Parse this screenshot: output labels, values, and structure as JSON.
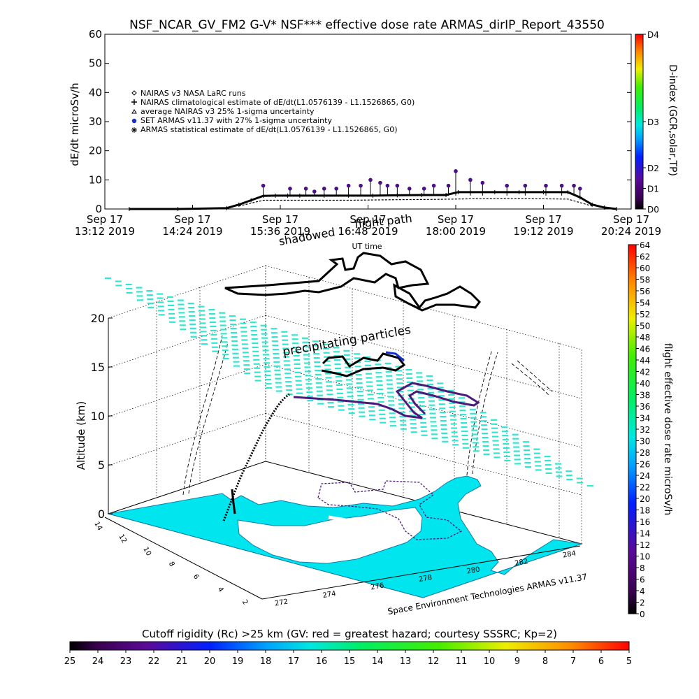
{
  "title": "NSF_NCAR_GV_FM2 G-V* NSF*** effective dose rate ARMAS_dirIP_Report_43550",
  "credit": "Space Environment Technologies ARMAS v11.37",
  "labels": {
    "shadowed": "shadowed",
    "flight_path": "flight path",
    "precipitating": "precipitating particles",
    "ut_time": "UT time"
  },
  "legend": [
    {
      "marker": "diamond",
      "text": "NAIRAS v3 NASA LaRC runs"
    },
    {
      "marker": "plus",
      "text": "NAIRAS climatological estimate of dE/dt(L1.0576139 - L1.1526865, G0)"
    },
    {
      "marker": "triangle",
      "text": "average NAIRAS v3 25% 1-sigma uncertainty"
    },
    {
      "marker": "circle",
      "text": "SET ARMAS v11.37 with 27% 1-sigma uncertainty"
    },
    {
      "marker": "asterisk",
      "text": "ARMAS statistical estimate of dE/dt(L1.0576139 - L1.1526865, G0)"
    }
  ],
  "dindex_bar": {
    "title": "D-index (GCR,solar,TP)",
    "ticks": [
      {
        "label": "D4",
        "frac": 1.0
      },
      {
        "label": "D3",
        "frac": 0.5
      },
      {
        "label": "D2",
        "frac": 0.236
      },
      {
        "label": "D1",
        "frac": 0.118
      },
      {
        "label": "D0",
        "frac": 0.0
      }
    ]
  },
  "dose_bar": {
    "title": "flight effective dose rate microSv/h",
    "min": 0,
    "max": 64,
    "step": 2
  },
  "rigidity_bar": {
    "title": "Cutoff rigidity (Rc) >25 km (GV: red = greatest hazard; courtesy SSSRC; Kp=2)",
    "ticks": [
      "25",
      "24",
      "23",
      "22",
      "21",
      "20",
      "19",
      "18",
      "17",
      "16",
      "15",
      "14",
      "13",
      "12",
      "11",
      "10",
      "9",
      "8",
      "7",
      "6",
      "5"
    ]
  },
  "colors": {
    "armas": "#4b0f8c",
    "land": "#00e5ee",
    "precip": "#30e6cf",
    "track": "#000000"
  },
  "chart_data": [
    {
      "type": "scatter",
      "ylabel": "dE/dt microSv/h",
      "xlabel": "UT time",
      "ylim": [
        0,
        60
      ],
      "yticks": [
        0,
        10,
        20,
        30,
        40,
        50,
        60
      ],
      "xlim": [
        0,
        432
      ],
      "xticks": [
        {
          "t": 0,
          "l1": "Sep 17",
          "l2": "13:12 2019"
        },
        {
          "t": 72,
          "l1": "Sep 17",
          "l2": "14:24 2019"
        },
        {
          "t": 144,
          "l1": "Sep 17",
          "l2": "15:36 2019"
        },
        {
          "t": 216,
          "l1": "Sep 17",
          "l2": "16:48 2019"
        },
        {
          "t": 288,
          "l1": "Sep 17",
          "l2": "18:00 2019"
        },
        {
          "t": 360,
          "l1": "Sep 17",
          "l2": "19:12 2019"
        },
        {
          "t": 432,
          "l1": "Sep 17",
          "l2": "20:24 2019"
        }
      ],
      "series": [
        {
          "name": "NAIRAS climatological estimate of dE/dt(L1.0576139 - L1.1526865, G0)",
          "marker": "plus",
          "x": [
            20,
            60,
            100,
            110,
            120,
            130,
            140,
            150,
            160,
            180,
            200,
            220,
            240,
            260,
            280,
            290,
            300,
            320,
            340,
            360,
            380,
            390,
            400,
            410,
            420
          ],
          "y": [
            0,
            0,
            0.3,
            1.5,
            3,
            4.5,
            4.6,
            4.6,
            4.6,
            4.6,
            4.6,
            4.6,
            4.7,
            4.8,
            4.8,
            5.8,
            5.8,
            5.8,
            5.8,
            5.8,
            5.8,
            4,
            1.5,
            0.5,
            0
          ]
        },
        {
          "name": "SET ARMAS v11.37 with 27% 1-sigma uncertainty",
          "marker": "circle",
          "x": [
            130,
            152,
            165,
            172,
            180,
            190,
            200,
            210,
            218,
            226,
            232,
            240,
            250,
            262,
            270,
            282,
            288,
            300,
            310,
            330,
            345,
            362,
            375,
            385,
            390
          ],
          "y": [
            8,
            7,
            7,
            6,
            7,
            7,
            8,
            8,
            10,
            9,
            8,
            8,
            7,
            7,
            8,
            8,
            13,
            10,
            9,
            8,
            8,
            8,
            8,
            8,
            7
          ]
        },
        {
          "name": "NAIRAS v3 NASA LaRC runs",
          "marker": "diamond",
          "x": [
            110,
            130,
            160,
            200,
            240,
            270,
            300,
            340,
            380,
            400
          ],
          "y": [
            1,
            3,
            3,
            3,
            3.2,
            3.3,
            3.5,
            3.6,
            3.4,
            1
          ]
        }
      ]
    },
    {
      "type": "line",
      "title": "",
      "ylabel": "Altitude (km)",
      "xlabel": "",
      "zlim": [
        0,
        20
      ],
      "zticks": [
        0,
        5,
        10,
        15,
        20
      ],
      "lonticks": [
        272,
        274,
        276,
        278,
        280,
        282,
        284
      ],
      "latticks": [
        2,
        4,
        6,
        8,
        10,
        12,
        14
      ],
      "series": [
        {
          "name": "flight path",
          "lon": [
            272.0,
            272.4,
            272.8,
            273.1,
            273.0,
            272.9,
            272.8
          ],
          "alt": [
            0.5,
            3,
            7,
            11,
            12.5,
            12.3,
            12.0
          ]
        }
      ]
    }
  ]
}
